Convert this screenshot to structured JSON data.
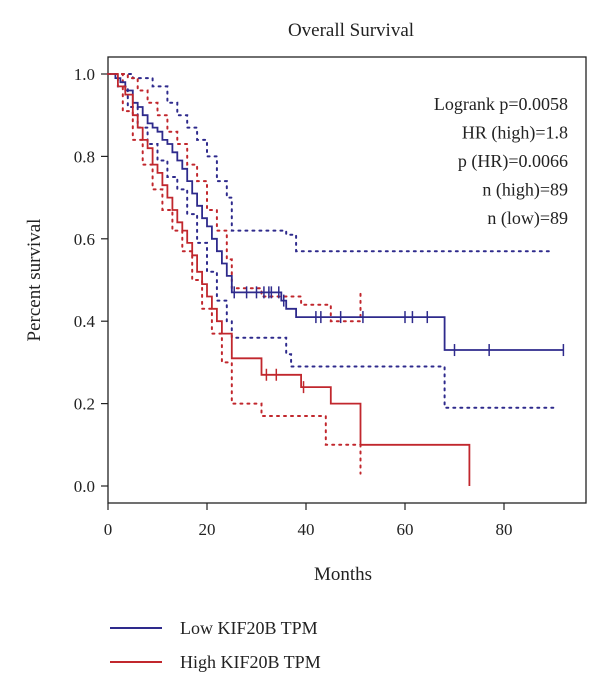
{
  "chart_data": {
    "type": "line",
    "title": "Overall Survival",
    "xlabel": "Months",
    "ylabel": "Percent survival",
    "xlim": [
      0,
      95
    ],
    "ylim": [
      0,
      1.0
    ],
    "xticks": [
      "0",
      "20",
      "40",
      "60",
      "80"
    ],
    "yticks": [
      "0.0",
      "0.2",
      "0.4",
      "0.6",
      "0.8",
      "1.0"
    ],
    "annotations": [
      "Logrank p=0.0058",
      "HR (high)=1.8",
      "p (HR)=0.0066",
      "n (high)=89",
      "n (low)=89"
    ],
    "legend_position": "bottom",
    "series": [
      {
        "name": "Low KIF20B TPM",
        "color": "#2e2a8c",
        "style": "solid",
        "x": [
          0,
          1.5,
          2.5,
          3.5,
          5,
          6,
          7,
          8,
          9,
          10,
          11,
          12,
          13,
          14,
          15,
          16,
          17,
          18,
          19,
          20,
          21,
          22,
          23,
          24,
          25,
          35,
          36,
          38,
          68,
          92
        ],
        "y": [
          1.0,
          0.99,
          0.98,
          0.96,
          0.93,
          0.92,
          0.9,
          0.88,
          0.87,
          0.86,
          0.84,
          0.83,
          0.81,
          0.79,
          0.77,
          0.74,
          0.71,
          0.68,
          0.65,
          0.63,
          0.6,
          0.57,
          0.54,
          0.51,
          0.47,
          0.45,
          0.43,
          0.41,
          0.33,
          0.33
        ],
        "censor_x": [
          25.5,
          28,
          30,
          31.5,
          32.5,
          33,
          34.5,
          35.5,
          42,
          43,
          47,
          51.5,
          60,
          61.5,
          64.5,
          70,
          77,
          92
        ],
        "ci_upper_x": [
          0,
          1.5,
          3,
          5,
          9,
          12,
          14,
          16,
          18,
          20,
          22,
          24,
          25,
          36,
          38,
          90
        ],
        "ci_upper_y": [
          1.0,
          1.0,
          1.0,
          0.99,
          0.97,
          0.93,
          0.9,
          0.87,
          0.84,
          0.8,
          0.74,
          0.7,
          0.62,
          0.61,
          0.57,
          0.57
        ],
        "ci_lower_x": [
          0,
          2,
          4,
          6,
          8,
          10,
          12,
          14,
          16,
          18,
          20,
          22,
          24,
          25,
          36,
          37,
          68,
          90
        ],
        "ci_lower_y": [
          1.0,
          0.97,
          0.92,
          0.87,
          0.83,
          0.79,
          0.75,
          0.72,
          0.66,
          0.59,
          0.52,
          0.45,
          0.4,
          0.36,
          0.32,
          0.29,
          0.19,
          0.19
        ]
      },
      {
        "name": "High KIF20B TPM",
        "color": "#c1272d",
        "style": "solid",
        "x": [
          0,
          2,
          3.5,
          5,
          6,
          7,
          8,
          9,
          10,
          11,
          12,
          13,
          14,
          15,
          16,
          17,
          18,
          19,
          20,
          21,
          22,
          23,
          25,
          31,
          39,
          45,
          51,
          73
        ],
        "y": [
          1.0,
          0.97,
          0.95,
          0.9,
          0.87,
          0.84,
          0.82,
          0.78,
          0.76,
          0.73,
          0.7,
          0.67,
          0.64,
          0.62,
          0.59,
          0.56,
          0.52,
          0.49,
          0.46,
          0.43,
          0.4,
          0.37,
          0.31,
          0.27,
          0.24,
          0.2,
          0.1,
          0.0
        ],
        "censor_x": [
          32,
          34,
          39.5
        ],
        "ci_upper_x": [
          0,
          2,
          4,
          6,
          8,
          10,
          12,
          14,
          16,
          18,
          20,
          22,
          24,
          25,
          31,
          39,
          45,
          51
        ],
        "ci_upper_y": [
          1.0,
          1.0,
          0.99,
          0.96,
          0.93,
          0.9,
          0.86,
          0.83,
          0.78,
          0.74,
          0.67,
          0.62,
          0.55,
          0.48,
          0.46,
          0.44,
          0.4,
          0.47
        ],
        "ci_lower_x": [
          0,
          3,
          5,
          7,
          9,
          11,
          13,
          15,
          17,
          19,
          21,
          23,
          25,
          31,
          44,
          45,
          51
        ],
        "ci_lower_y": [
          1.0,
          0.91,
          0.84,
          0.78,
          0.72,
          0.67,
          0.62,
          0.57,
          0.5,
          0.43,
          0.37,
          0.3,
          0.2,
          0.17,
          0.1,
          0.1,
          0.03
        ]
      }
    ]
  }
}
